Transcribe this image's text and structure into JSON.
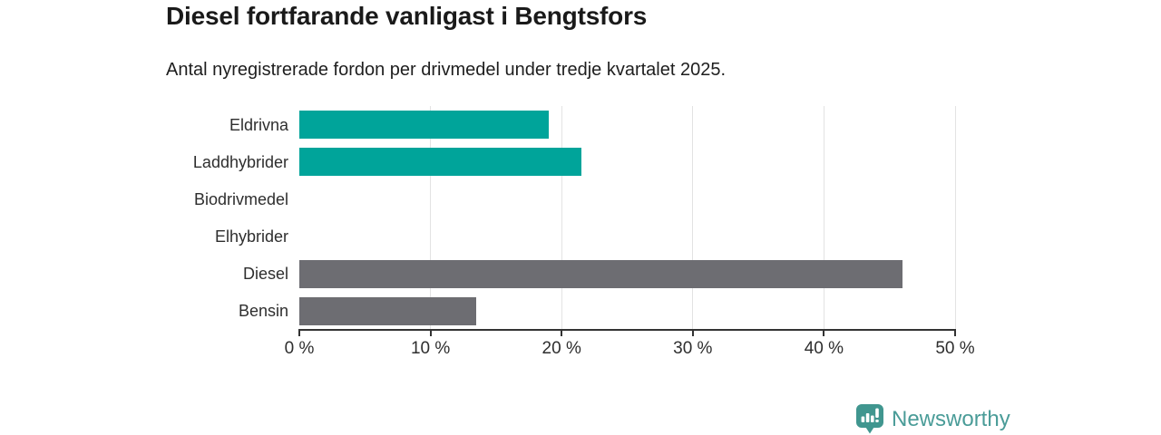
{
  "title": "Diesel fortfarande vanligast i Bengtsfors",
  "subtitle": "Antal nyregistrerade fordon per drivmedel under tredje kvartalet 2025.",
  "chart_data": {
    "type": "bar",
    "orientation": "horizontal",
    "categories": [
      "Eldrivna",
      "Laddhybrider",
      "Biodrivmedel",
      "Elhybrider",
      "Diesel",
      "Bensin"
    ],
    "values": [
      19,
      21.5,
      0,
      0,
      46,
      13.5
    ],
    "unit": "%",
    "bar_colors": [
      "#00a49a",
      "#00a49a",
      "#00a49a",
      "#00a49a",
      "#6d6d72",
      "#6d6d72"
    ],
    "title": "Diesel fortfarande vanligast i Bengtsfors",
    "subtitle": "Antal nyregistrerade fordon per drivmedel under tredje kvartalet 2025.",
    "xlabel": "",
    "ylabel": "",
    "xlim": [
      0,
      50
    ],
    "x_ticks": [
      0,
      10,
      20,
      30,
      40,
      50
    ],
    "x_tick_labels": [
      "0 %",
      "10 %",
      "20 %",
      "30 %",
      "40 %",
      "50 %"
    ],
    "grid": true,
    "legend": "none"
  },
  "colors": {
    "accent_teal": "#00a49a",
    "neutral_gray": "#6d6d72",
    "gridline": "#e3e3e3",
    "axis": "#333333",
    "logo_teal": "#40968f",
    "logo_text_color": "#4a9c98"
  },
  "branding": {
    "logo_text": "Newsworthy"
  }
}
